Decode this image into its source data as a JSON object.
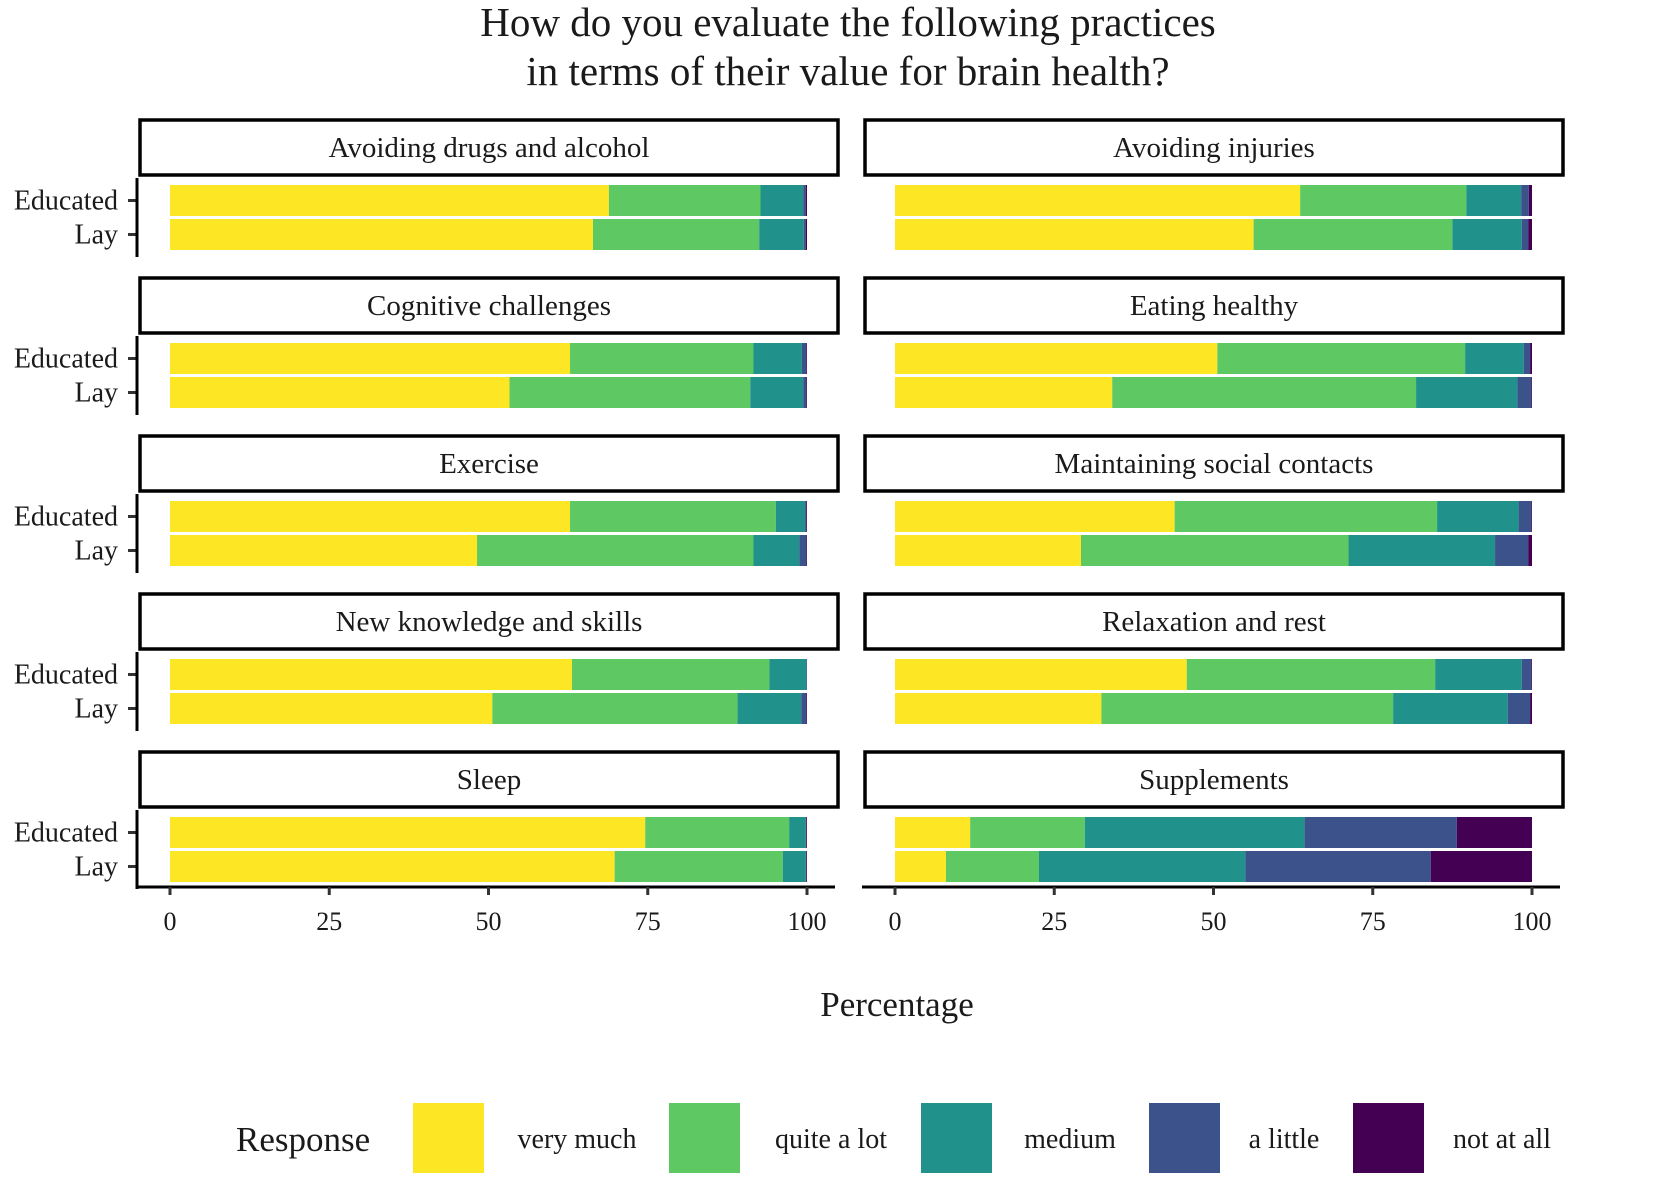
{
  "chart_data": {
    "type": "bar",
    "orientation": "horizontal",
    "stacked": true,
    "title": "How do you evaluate the following practices\nin terms of their value for brain health?",
    "xlabel": "Percentage",
    "ylabel": "",
    "xlim": [
      0,
      100
    ],
    "x_ticks": [
      0,
      25,
      50,
      75,
      100
    ],
    "groups": [
      "Educated",
      "Lay"
    ],
    "legend": {
      "title": "Response",
      "position": "bottom",
      "entries": [
        {
          "label": "very much",
          "color": "#FDE725"
        },
        {
          "label": "quite a lot",
          "color": "#5EC962"
        },
        {
          "label": "medium",
          "color": "#21918C"
        },
        {
          "label": "a little",
          "color": "#3B528B"
        },
        {
          "label": "not at all",
          "color": "#440154"
        }
      ]
    },
    "facets": [
      {
        "title": "Avoiding drugs and alcohol",
        "bars": [
          {
            "group": "Educated",
            "values": [
              68.9,
              23.8,
              6.7,
              0.4,
              0.2
            ]
          },
          {
            "group": "Lay",
            "values": [
              66.4,
              26.1,
              7.0,
              0.3,
              0.2
            ]
          }
        ]
      },
      {
        "title": "Avoiding injuries",
        "bars": [
          {
            "group": "Educated",
            "values": [
              63.6,
              26.1,
              8.6,
              1.2,
              0.5
            ]
          },
          {
            "group": "Lay",
            "values": [
              56.3,
              31.2,
              10.9,
              1.0,
              0.6
            ]
          }
        ]
      },
      {
        "title": "Cognitive challenges",
        "bars": [
          {
            "group": "Educated",
            "values": [
              62.8,
              28.8,
              7.6,
              0.7,
              0.1
            ]
          },
          {
            "group": "Lay",
            "values": [
              53.3,
              37.8,
              8.3,
              0.5,
              0.1
            ]
          }
        ]
      },
      {
        "title": "Eating healthy",
        "bars": [
          {
            "group": "Educated",
            "values": [
              50.6,
              38.9,
              9.2,
              1.0,
              0.3
            ]
          },
          {
            "group": "Lay",
            "values": [
              34.1,
              47.7,
              15.9,
              2.2,
              0.1
            ]
          }
        ]
      },
      {
        "title": "Exercise",
        "bars": [
          {
            "group": "Educated",
            "values": [
              62.8,
              32.3,
              4.6,
              0.2,
              0.1
            ]
          },
          {
            "group": "Lay",
            "values": [
              48.2,
              43.4,
              7.2,
              1.1,
              0.1
            ]
          }
        ]
      },
      {
        "title": "Maintaining social contacts",
        "bars": [
          {
            "group": "Educated",
            "values": [
              43.9,
              41.2,
              12.8,
              2.0,
              0.1
            ]
          },
          {
            "group": "Lay",
            "values": [
              29.2,
              42.0,
              23.0,
              5.2,
              0.6
            ]
          }
        ]
      },
      {
        "title": "New knowledge and skills",
        "bars": [
          {
            "group": "Educated",
            "values": [
              63.1,
              31.0,
              5.8,
              0.1,
              0.0
            ]
          },
          {
            "group": "Lay",
            "values": [
              50.6,
              38.5,
              10.0,
              0.8,
              0.1
            ]
          }
        ]
      },
      {
        "title": "Relaxation and rest",
        "bars": [
          {
            "group": "Educated",
            "values": [
              45.8,
              39.0,
              13.6,
              1.5,
              0.1
            ]
          },
          {
            "group": "Lay",
            "values": [
              32.4,
              45.8,
              18.0,
              3.5,
              0.3
            ]
          }
        ]
      },
      {
        "title": "Sleep",
        "bars": [
          {
            "group": "Educated",
            "values": [
              74.6,
              22.6,
              2.6,
              0.1,
              0.1
            ]
          },
          {
            "group": "Lay",
            "values": [
              69.8,
              26.4,
              3.6,
              0.1,
              0.1
            ]
          }
        ]
      },
      {
        "title": "Supplements",
        "bars": [
          {
            "group": "Educated",
            "values": [
              11.8,
              18.0,
              34.5,
              23.9,
              11.8
            ]
          },
          {
            "group": "Lay",
            "values": [
              8.0,
              14.6,
              32.4,
              29.1,
              15.9
            ]
          }
        ]
      }
    ]
  }
}
